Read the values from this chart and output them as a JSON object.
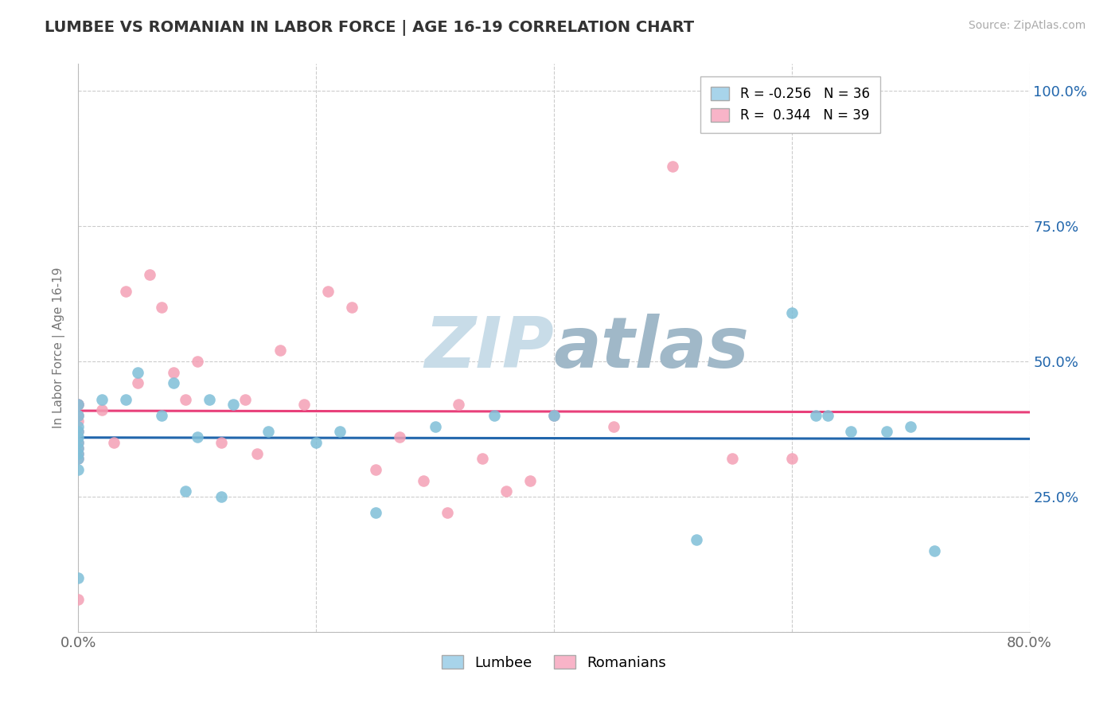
{
  "title": "LUMBEE VS ROMANIAN IN LABOR FORCE | AGE 16-19 CORRELATION CHART",
  "source_text": "Source: ZipAtlas.com",
  "ylabel_text": "In Labor Force | Age 16-19",
  "x_min": 0.0,
  "x_max": 0.8,
  "y_min": 0.0,
  "y_max": 1.05,
  "R_lumbee": -0.256,
  "N_lumbee": 36,
  "R_romanian": 0.344,
  "N_romanian": 39,
  "lumbee_color": "#7fbfd8",
  "romanian_color": "#f4a0b5",
  "lumbee_line_color": "#2166ac",
  "romanian_line_color": "#e8407a",
  "legend_lumbee_color": "#a8d4ea",
  "legend_romanian_color": "#f8b4c8",
  "watermark_color": "#dde8f0",
  "lumbee_x": [
    0.0,
    0.0,
    0.0,
    0.0,
    0.0,
    0.0,
    0.0,
    0.0,
    0.0,
    0.0,
    0.0,
    0.02,
    0.04,
    0.05,
    0.07,
    0.08,
    0.09,
    0.1,
    0.11,
    0.12,
    0.13,
    0.16,
    0.2,
    0.22,
    0.25,
    0.3,
    0.35,
    0.4,
    0.52,
    0.6,
    0.62,
    0.63,
    0.65,
    0.68,
    0.7,
    0.72
  ],
  "lumbee_y": [
    0.42,
    0.4,
    0.38,
    0.37,
    0.36,
    0.35,
    0.34,
    0.33,
    0.32,
    0.3,
    0.1,
    0.43,
    0.43,
    0.48,
    0.4,
    0.46,
    0.26,
    0.36,
    0.43,
    0.25,
    0.42,
    0.37,
    0.35,
    0.37,
    0.22,
    0.38,
    0.4,
    0.4,
    0.17,
    0.59,
    0.4,
    0.4,
    0.37,
    0.37,
    0.38,
    0.15
  ],
  "romanian_x": [
    0.0,
    0.0,
    0.0,
    0.0,
    0.0,
    0.0,
    0.0,
    0.0,
    0.0,
    0.0,
    0.02,
    0.03,
    0.04,
    0.05,
    0.06,
    0.07,
    0.08,
    0.09,
    0.1,
    0.12,
    0.14,
    0.15,
    0.17,
    0.19,
    0.21,
    0.23,
    0.25,
    0.27,
    0.29,
    0.31,
    0.32,
    0.34,
    0.36,
    0.38,
    0.4,
    0.45,
    0.5,
    0.55,
    0.6
  ],
  "romanian_y": [
    0.42,
    0.4,
    0.39,
    0.37,
    0.35,
    0.34,
    0.33,
    0.32,
    0.06,
    0.42,
    0.41,
    0.35,
    0.63,
    0.46,
    0.66,
    0.6,
    0.48,
    0.43,
    0.5,
    0.35,
    0.43,
    0.33,
    0.52,
    0.42,
    0.63,
    0.6,
    0.3,
    0.36,
    0.28,
    0.22,
    0.42,
    0.32,
    0.26,
    0.28,
    0.4,
    0.38,
    0.86,
    0.32,
    0.32
  ]
}
